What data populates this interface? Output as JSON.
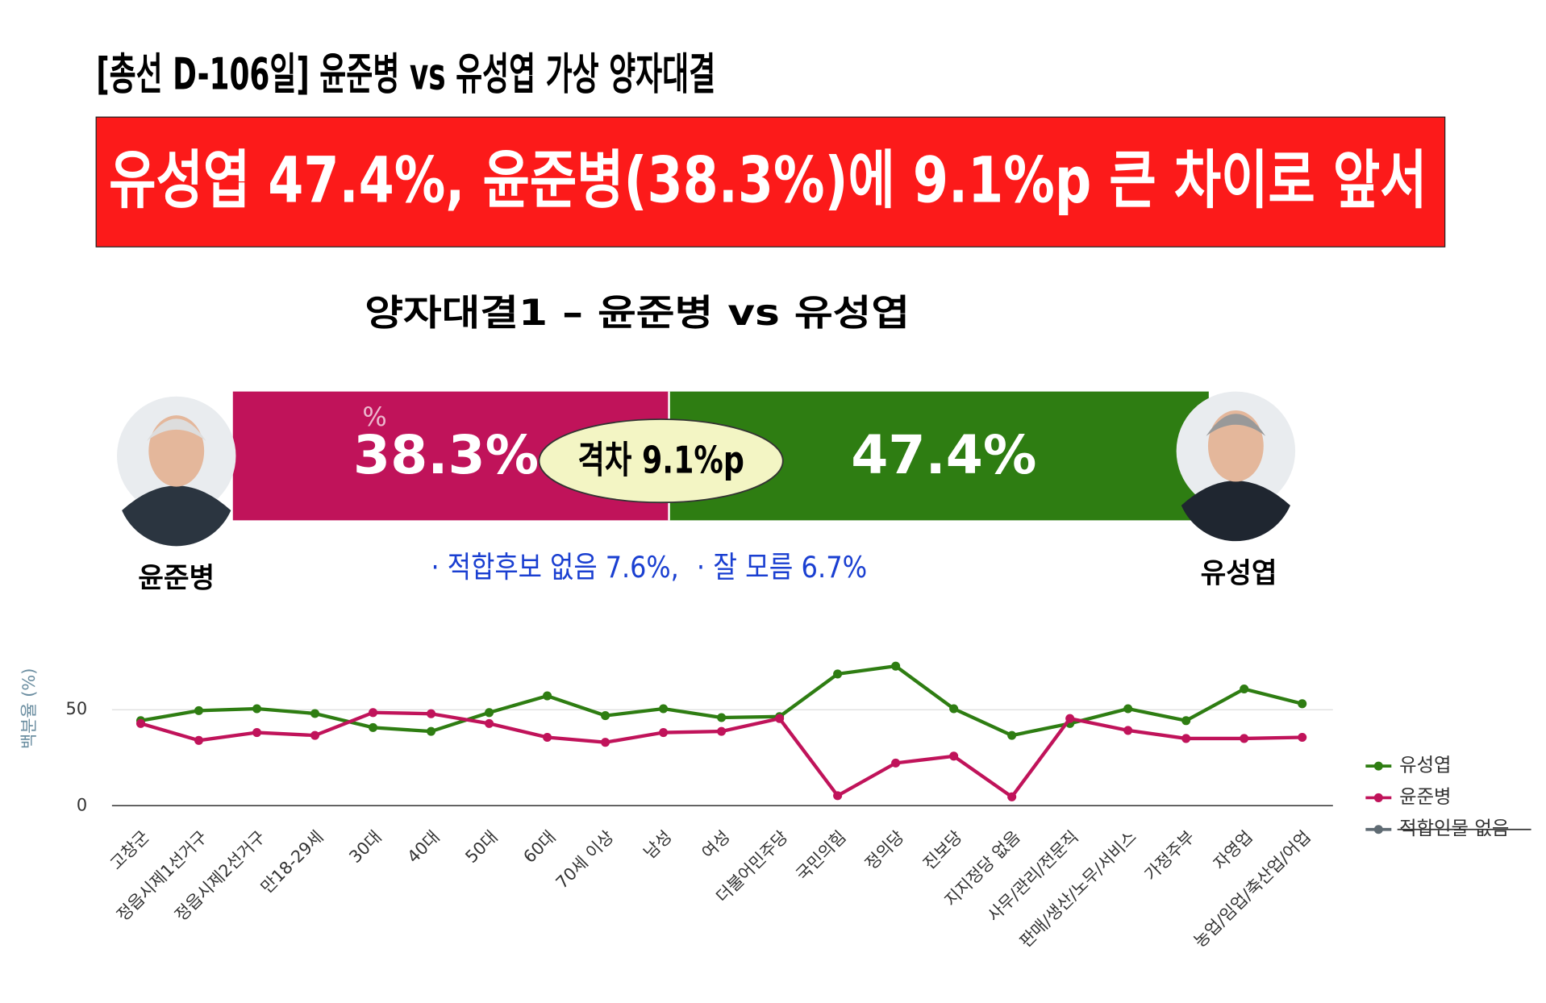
{
  "title": "[총선 D-106일] 윤준병 vs 유성엽 가상 양자대결",
  "headline": "유성엽 47.4%, 윤준병(38.3%)에 9.1%p 큰 차이로 앞서",
  "subtitle": "양자대결1 – 윤준병 vs 유성엽",
  "notes": [
    "· 적합후보 없음 7.6%,",
    "· 잘 모름  6.7%"
  ],
  "chart_data": [
    {
      "type": "split_bar",
      "annotation": "%",
      "gap_label": "격차 9.1%p",
      "categories": [
        "윤준병",
        "유성엽"
      ],
      "values": [
        38.3,
        47.4
      ],
      "value_labels": [
        "38.3%",
        "47.4%"
      ],
      "colors": [
        "#c0135a",
        "#2e7d12"
      ]
    },
    {
      "type": "line",
      "y_label": "백분율 (%)",
      "categories": [
        "고창군",
        "정읍시제1선거구",
        "정읍시제2선거구",
        "만18-29세",
        "30대",
        "40대",
        "50대",
        "60대",
        "70세 이상",
        "남성",
        "여성",
        "더불어민주당",
        "국민의힘",
        "정의당",
        "진보당",
        "지지정당 없음",
        "사무/관리/전문직",
        "판매/생산/노무/서비스",
        "가정주부",
        "자영업",
        "농업/임업/축산업/어업"
      ],
      "series": [
        {
          "name": "유성엽",
          "color": "#2e7d12",
          "values": [
            44.3,
            49.5,
            50.5,
            48,
            40.7,
            38.7,
            48.5,
            57.2,
            46.9,
            50.5,
            45.9,
            46.4,
            68.6,
            72.7,
            50.5,
            36.6,
            42.8,
            50.5,
            44.3,
            60.8,
            53.1
          ]
        },
        {
          "name": "윤준병",
          "color": "#c0135a",
          "values": [
            42.8,
            34,
            38.1,
            36.6,
            48.5,
            47.9,
            42.8,
            35.6,
            33,
            38.1,
            38.7,
            45.4,
            5.2,
            22.2,
            25.8,
            4.6,
            45.4,
            39.2,
            35,
            35,
            35.6
          ]
        },
        {
          "name": "적합인물 없음",
          "color": "#5f6b73",
          "hidden": true,
          "values": [
            null,
            null,
            null,
            null,
            null,
            null,
            null,
            null,
            null,
            null,
            null,
            null,
            null,
            null,
            null,
            null,
            null,
            null,
            null,
            null,
            null
          ]
        }
      ],
      "ylim": [
        0,
        80
      ],
      "yticks": [
        0,
        50
      ],
      "grid": true,
      "legend": "right"
    }
  ]
}
